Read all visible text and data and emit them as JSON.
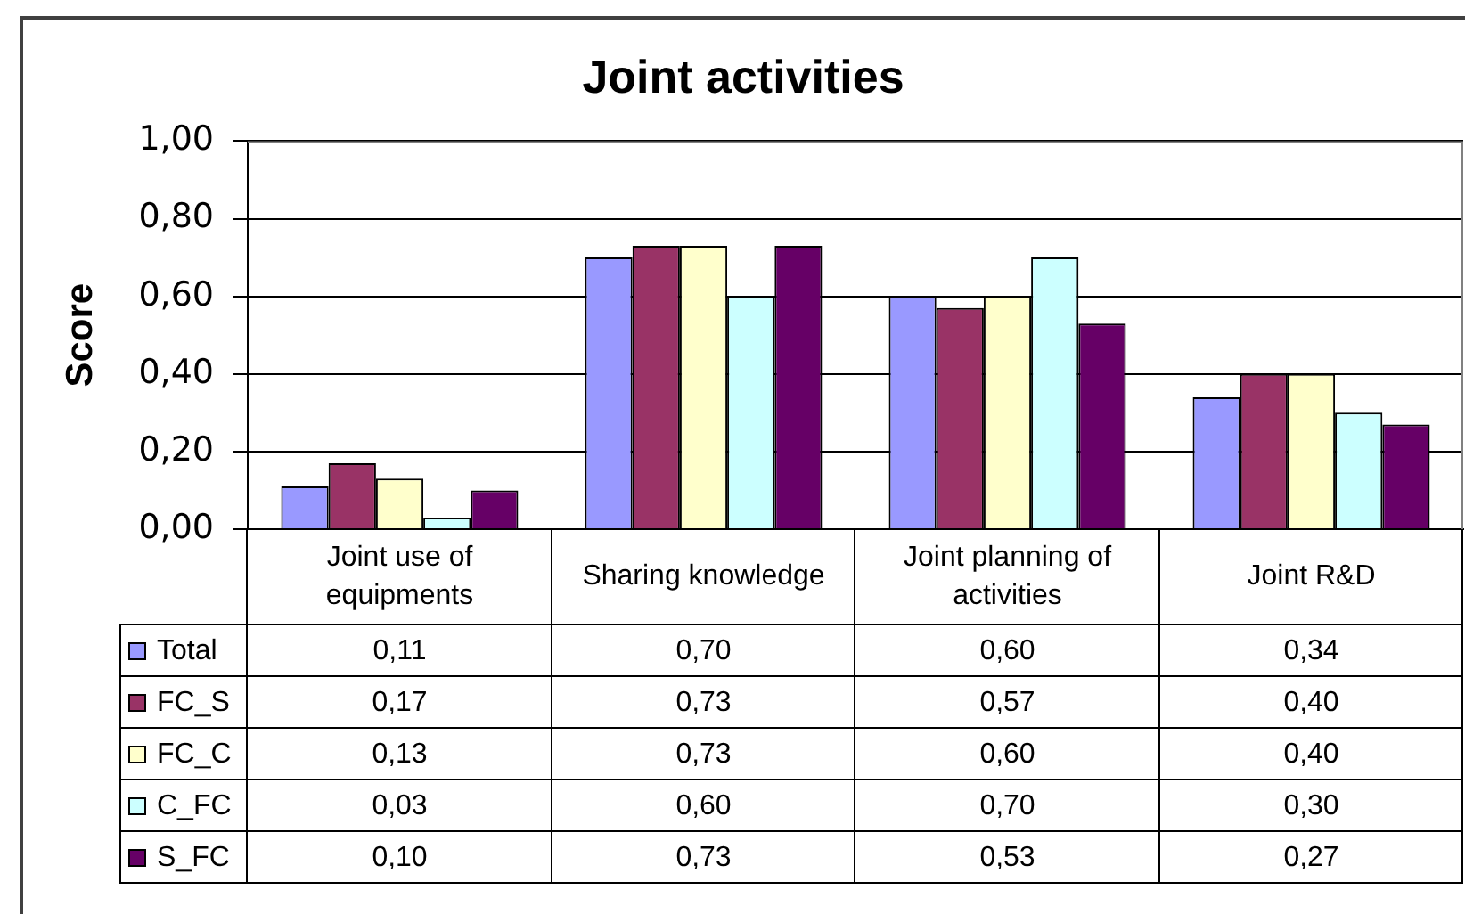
{
  "chart_data": {
    "type": "bar",
    "title": "Joint activities",
    "ylabel": "Score",
    "categories": [
      "Joint use of equipments",
      "Sharing knowledge",
      "Joint planning of activities",
      "Joint R&D"
    ],
    "series": [
      {
        "name": "Total",
        "color": "#9999ff",
        "values": [
          0.11,
          0.7,
          0.6,
          0.34
        ],
        "value_labels": [
          "0,11",
          "0,70",
          "0,60",
          "0,34"
        ]
      },
      {
        "name": "FC_S",
        "color": "#993366",
        "values": [
          0.17,
          0.73,
          0.57,
          0.4
        ],
        "value_labels": [
          "0,17",
          "0,73",
          "0,57",
          "0,40"
        ]
      },
      {
        "name": "FC_C",
        "color": "#ffffcc",
        "values": [
          0.13,
          0.73,
          0.6,
          0.4
        ],
        "value_labels": [
          "0,13",
          "0,73",
          "0,60",
          "0,40"
        ]
      },
      {
        "name": "C_FC",
        "color": "#ccffff",
        "values": [
          0.03,
          0.6,
          0.7,
          0.3
        ],
        "value_labels": [
          "0,03",
          "0,60",
          "0,70",
          "0,30"
        ]
      },
      {
        "name": "S_FC",
        "color": "#660066",
        "values": [
          0.1,
          0.73,
          0.53,
          0.27
        ],
        "value_labels": [
          "0,10",
          "0,73",
          "0,53",
          "0,27"
        ]
      }
    ],
    "ylim": [
      0,
      1
    ],
    "yticks": [
      {
        "value": 0,
        "label": "0,00"
      },
      {
        "value": 0.2,
        "label": "0,20"
      },
      {
        "value": 0.4,
        "label": "0,40"
      },
      {
        "value": 0.6,
        "label": "0,60"
      },
      {
        "value": 0.8,
        "label": "0,80"
      },
      {
        "value": 1,
        "label": "1,00"
      }
    ],
    "grid": "y",
    "legend": "bottom left"
  }
}
